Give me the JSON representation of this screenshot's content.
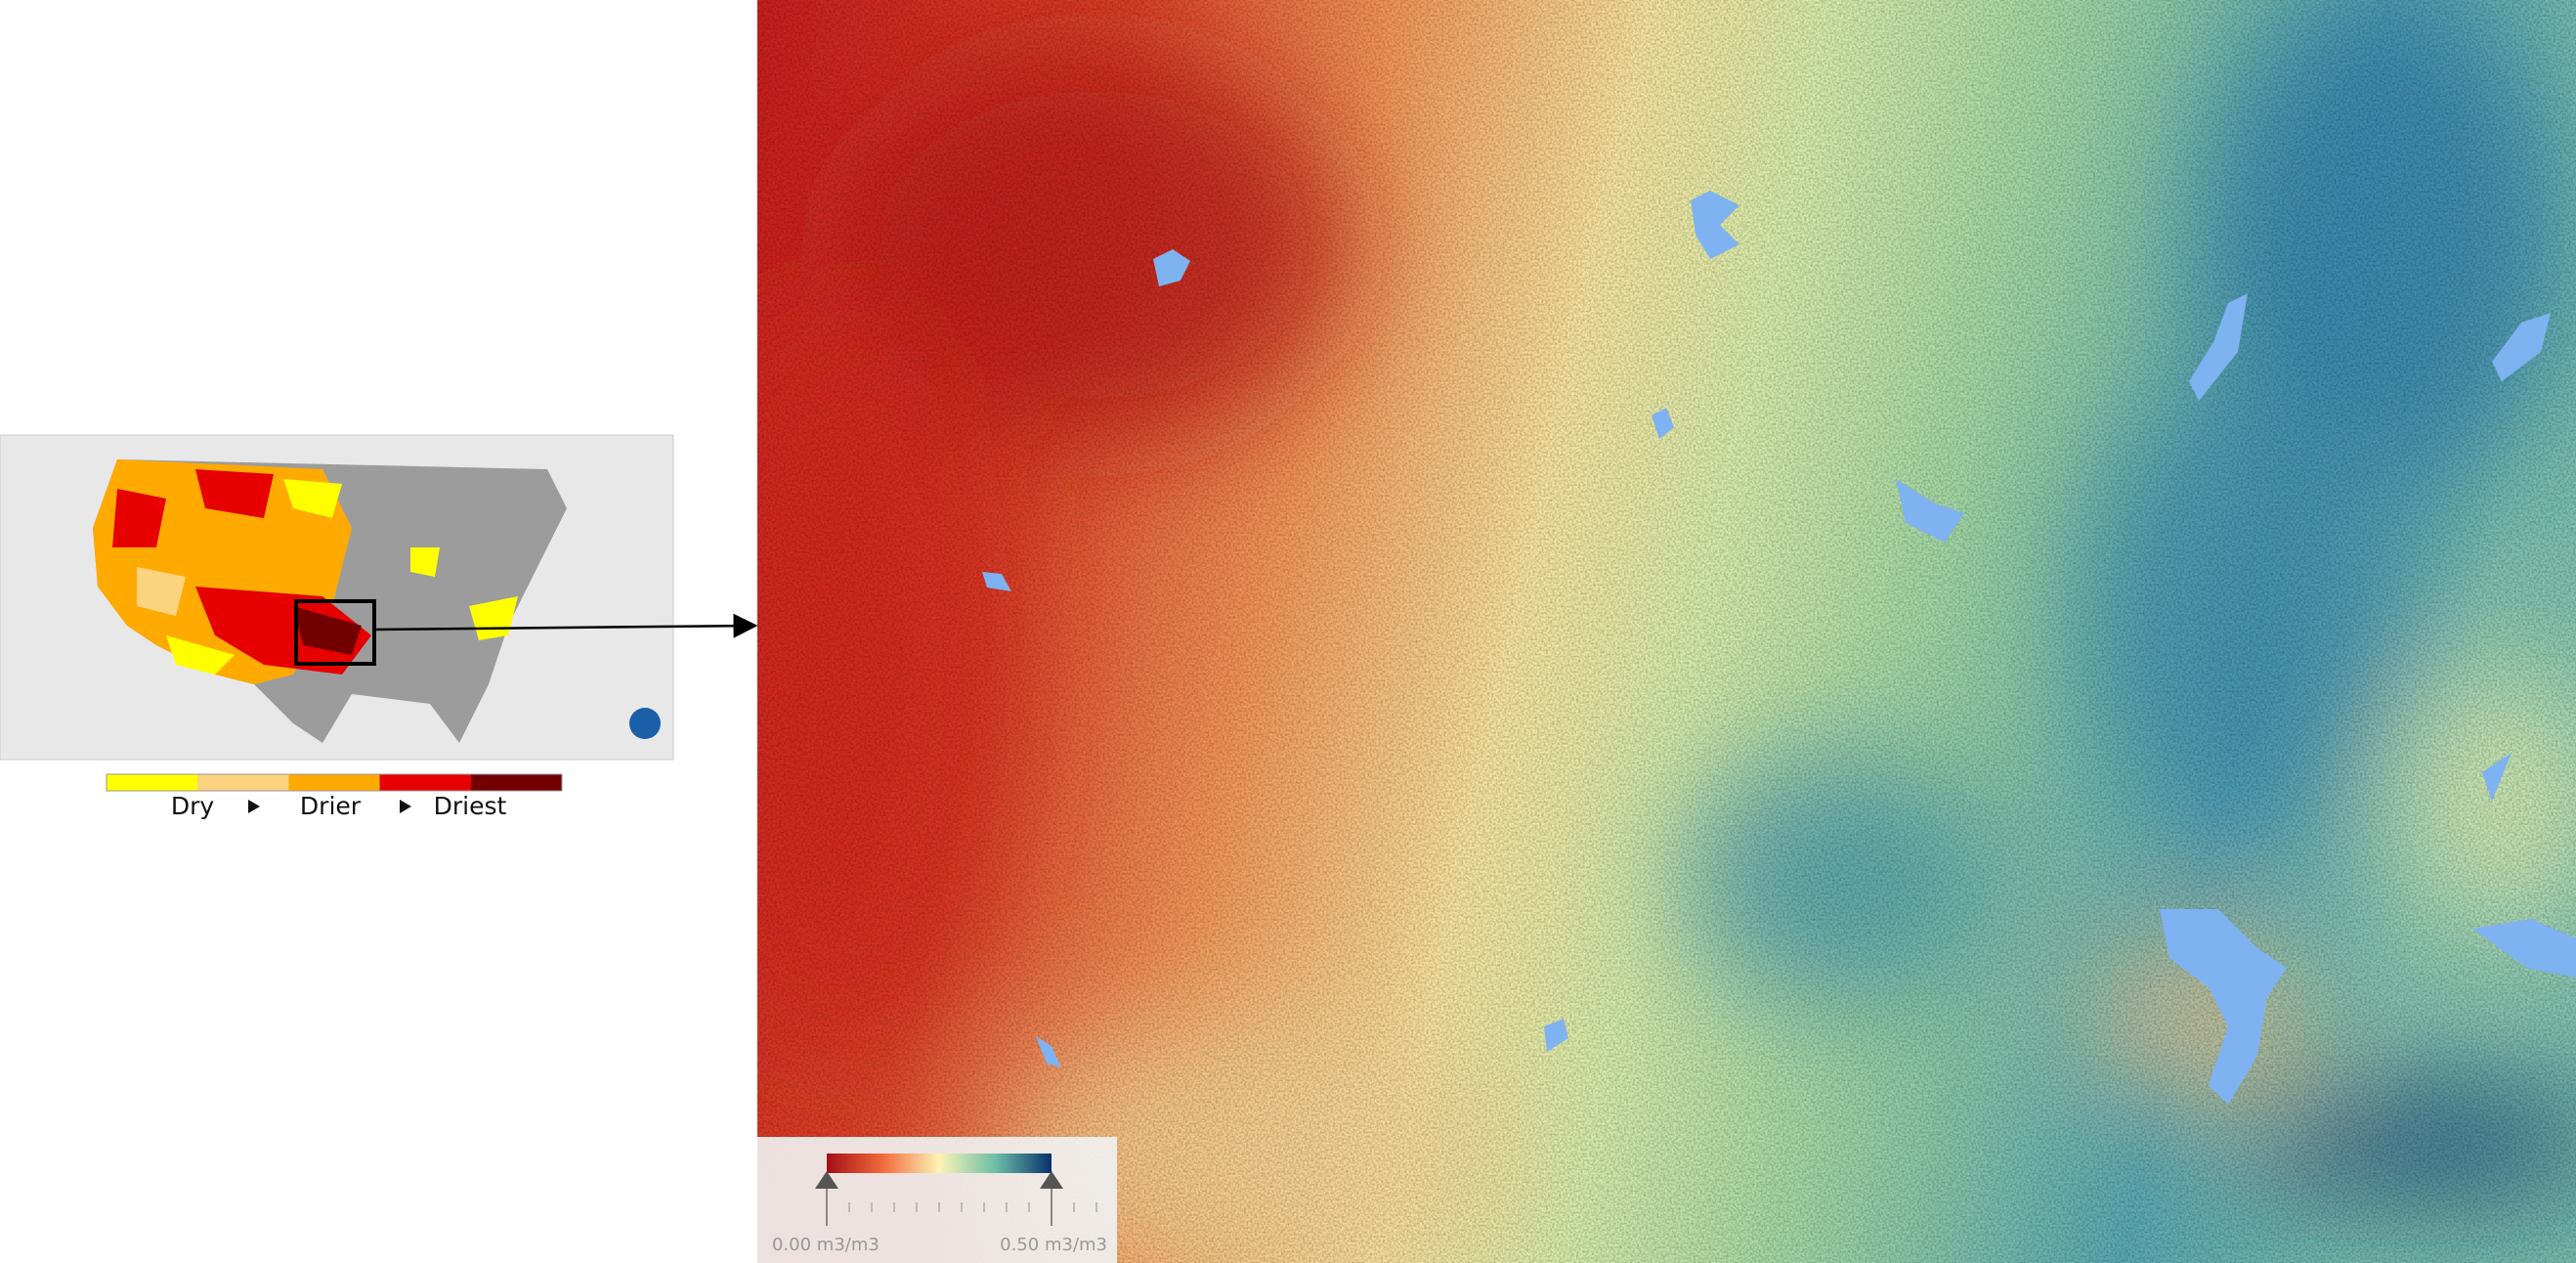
{
  "inset_legend": {
    "labels": [
      "Dry",
      "Drier",
      "Driest"
    ]
  },
  "colorbar": {
    "min_label": "0.00 m3/m3",
    "max_label": "0.50 m3/m3"
  }
}
